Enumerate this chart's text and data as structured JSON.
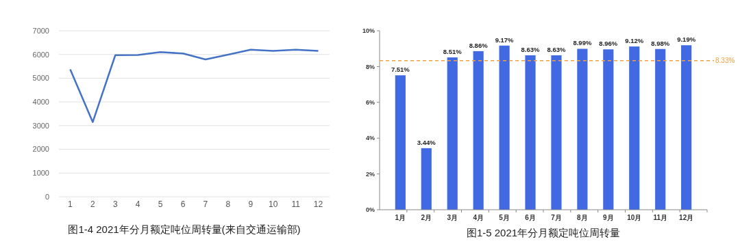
{
  "chart_data": [
    {
      "type": "line",
      "title": "图1-4  2021年分月额定吨位周转量(来自交通运输部)",
      "x": [
        1,
        2,
        3,
        4,
        5,
        6,
        7,
        8,
        9,
        10,
        11,
        12
      ],
      "xlim": [
        0.5,
        12.5
      ],
      "xticks": [
        1,
        2,
        3,
        4,
        5,
        6,
        7,
        8,
        9,
        10,
        11,
        12
      ],
      "series": [
        {
          "color": "#4472c4",
          "values": [
            5370,
            3150,
            5970,
            5980,
            6100,
            6040,
            5790,
            5990,
            6200,
            6150,
            6200,
            6150
          ]
        }
      ],
      "ylim": [
        0,
        7000
      ],
      "yticks": [
        0,
        1000,
        2000,
        3000,
        4000,
        5000,
        6000,
        7000
      ],
      "grid": "y",
      "marker": "none",
      "line_style": "solid"
    },
    {
      "type": "bar",
      "title": "图1-5  2021年分月额定吨位周转量",
      "categories": [
        "1月",
        "2月",
        "3月",
        "4月",
        "5月",
        "6月",
        "7月",
        "8月",
        "9月",
        "10月",
        "11月",
        "12月"
      ],
      "values": [
        7.51,
        3.44,
        8.51,
        8.86,
        9.17,
        8.63,
        8.63,
        8.99,
        8.96,
        9.12,
        8.98,
        9.19
      ],
      "value_labels": [
        "7.51%",
        "3.44%",
        "8.51%",
        "8.86%",
        "9.17%",
        "8.63%",
        "8.63%",
        "8.99%",
        "8.96%",
        "9.12%",
        "8.98%",
        "9.19%"
      ],
      "color": "#4169e1",
      "ylim": [
        0,
        10
      ],
      "yticks": [
        {
          "value": 0,
          "label": "0%"
        },
        {
          "value": 2,
          "label": "2%"
        },
        {
          "value": 4,
          "label": "4%"
        },
        {
          "value": 6,
          "label": "6%"
        },
        {
          "value": 8,
          "label": "8%"
        },
        {
          "value": 10,
          "label": "10%"
        }
      ],
      "ref_lines": [
        {
          "axis": "y",
          "value": 8.33,
          "label": "8.33%",
          "color": "#f5a03c",
          "line_style": "dashed"
        }
      ],
      "grid": false
    }
  ]
}
